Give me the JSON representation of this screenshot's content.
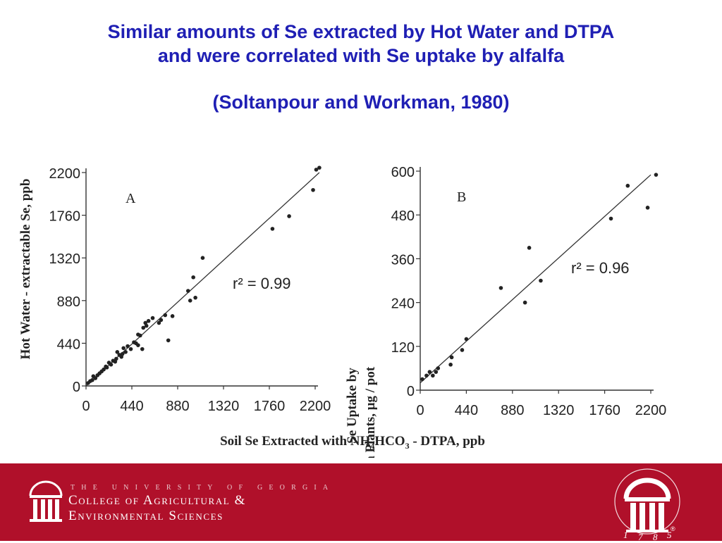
{
  "title_lines": [
    "Similar amounts of Se extracted by Hot Water and DTPA",
    "and were correlated with Se uptake by alfalfa"
  ],
  "citation": "(Soltanpour and Workman, 1980)",
  "shared_xlabel": "Soil Se Extracted with NH4HCO3 - DTPA, ppb",
  "footer": {
    "university": "THE UNIVERSITY OF GEORGIA",
    "college_line1": "College of Agricultural &",
    "college_line2": "Environmental Sciences",
    "year": "1785",
    "registered_mark": "®",
    "colors": {
      "background": "#b0102a",
      "text": "#ffffff"
    }
  },
  "chart_data": [
    {
      "type": "scatter",
      "panel_label": "A",
      "annotation": "r² = 0.99",
      "r_squared": 0.99,
      "ylabel": "Hot Water - extractable Se, ppb",
      "xlabel": "Soil Se Extracted with NH4HCO3 - DTPA, ppb",
      "xticks": [
        "0",
        "440",
        "880",
        "1320",
        "1760",
        "2200"
      ],
      "yticks": [
        "0",
        "440",
        "880",
        "1320",
        "1760",
        "2200"
      ],
      "xlim": [
        0,
        2200
      ],
      "ylim": [
        0,
        2200
      ],
      "fit_line": [
        [
          0,
          0
        ],
        [
          2240,
          2200
        ]
      ],
      "points": [
        [
          20,
          30
        ],
        [
          40,
          50
        ],
        [
          60,
          60
        ],
        [
          70,
          100
        ],
        [
          90,
          80
        ],
        [
          110,
          110
        ],
        [
          130,
          130
        ],
        [
          150,
          150
        ],
        [
          170,
          170
        ],
        [
          190,
          200
        ],
        [
          200,
          190
        ],
        [
          220,
          240
        ],
        [
          240,
          220
        ],
        [
          260,
          260
        ],
        [
          280,
          250
        ],
        [
          290,
          280
        ],
        [
          300,
          350
        ],
        [
          320,
          320
        ],
        [
          340,
          300
        ],
        [
          350,
          330
        ],
        [
          360,
          390
        ],
        [
          380,
          350
        ],
        [
          400,
          410
        ],
        [
          430,
          380
        ],
        [
          460,
          450
        ],
        [
          480,
          440
        ],
        [
          500,
          530
        ],
        [
          500,
          420
        ],
        [
          520,
          520
        ],
        [
          540,
          380
        ],
        [
          550,
          600
        ],
        [
          570,
          650
        ],
        [
          580,
          620
        ],
        [
          600,
          670
        ],
        [
          640,
          700
        ],
        [
          700,
          650
        ],
        [
          720,
          680
        ],
        [
          760,
          730
        ],
        [
          790,
          470
        ],
        [
          830,
          720
        ],
        [
          980,
          980
        ],
        [
          1000,
          880
        ],
        [
          1030,
          1120
        ],
        [
          1050,
          910
        ],
        [
          1120,
          1320
        ],
        [
          1790,
          1620
        ],
        [
          1950,
          1750
        ],
        [
          2180,
          2020
        ],
        [
          2210,
          2230
        ],
        [
          2240,
          2250
        ]
      ]
    },
    {
      "type": "scatter",
      "panel_label": "B",
      "annotation": "r² = 0.96",
      "r_squared": 0.96,
      "ylabel_lines": [
        "Se Uptake by",
        "Alfalfa Plants, μg / pot"
      ],
      "xlabel": "Soil Se Extracted with NH4HCO3 - DTPA, ppb",
      "xticks": [
        "0",
        "440",
        "880",
        "1320",
        "1760",
        "2200"
      ],
      "yticks": [
        "0",
        "120",
        "240",
        "360",
        "480",
        "600"
      ],
      "xlim": [
        0,
        2200
      ],
      "ylim": [
        0,
        600
      ],
      "fit_line": [
        [
          0,
          20
        ],
        [
          2200,
          590
        ]
      ],
      "points": [
        [
          20,
          30
        ],
        [
          60,
          40
        ],
        [
          90,
          50
        ],
        [
          120,
          40
        ],
        [
          150,
          50
        ],
        [
          170,
          60
        ],
        [
          290,
          70
        ],
        [
          300,
          90
        ],
        [
          400,
          110
        ],
        [
          440,
          140
        ],
        [
          770,
          280
        ],
        [
          1000,
          240
        ],
        [
          1040,
          390
        ],
        [
          1150,
          300
        ],
        [
          1820,
          470
        ],
        [
          1980,
          560
        ],
        [
          2170,
          500
        ],
        [
          2250,
          590
        ]
      ]
    }
  ]
}
